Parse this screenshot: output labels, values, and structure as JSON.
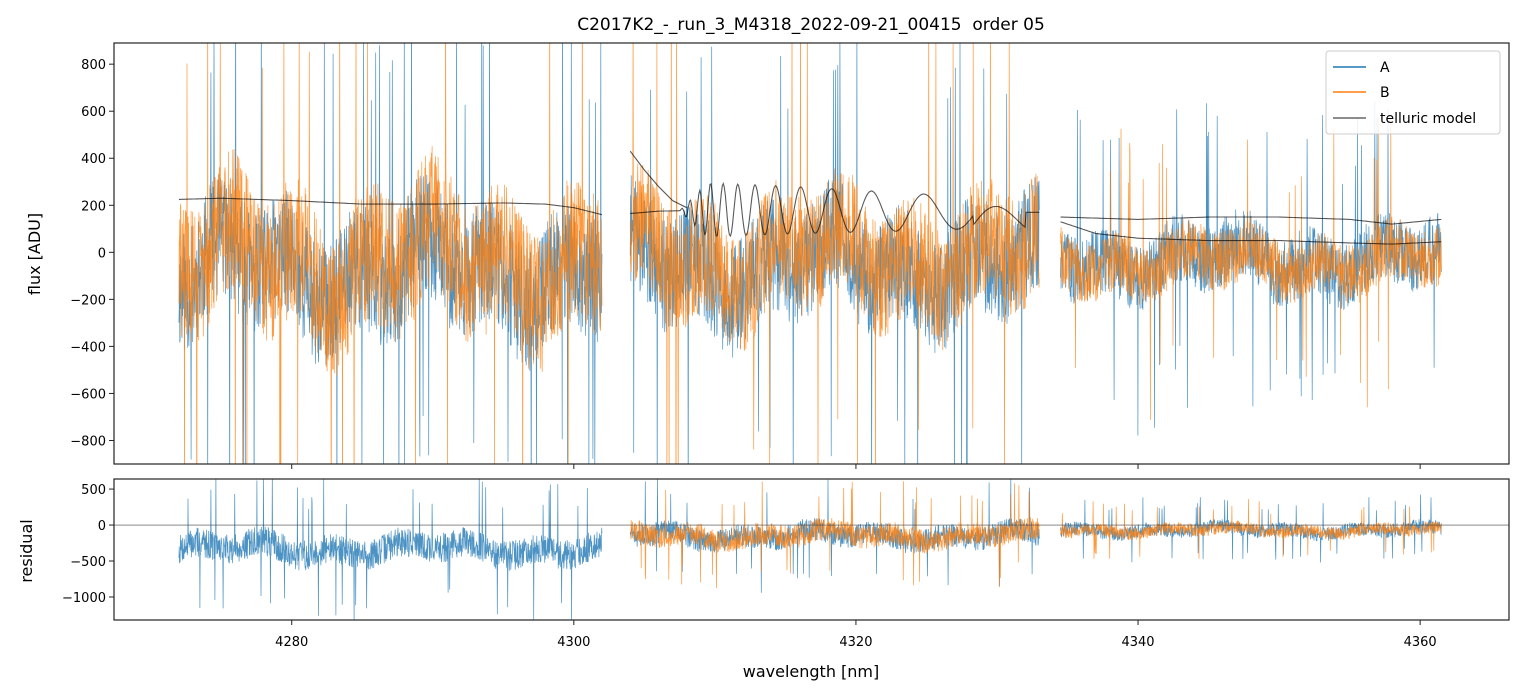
{
  "chart_data": {
    "type": "line",
    "title": "C2017K2_-_run_3_M4318_2022-09-21_00415  order 05",
    "xlabel": "wavelength [nm]",
    "xlim": [
      4267.4,
      4366.3
    ],
    "xticks": [
      4280,
      4300,
      4320,
      4340,
      4360
    ],
    "top": {
      "ylabel": "flux [ADU]",
      "ylim": [
        -900,
        890
      ],
      "yticks": [
        800,
        600,
        400,
        200,
        0,
        -200,
        -400,
        -600,
        -800
      ],
      "legend": {
        "placement": "top-right",
        "entries": [
          "A",
          "B",
          "telluric model"
        ]
      },
      "series": [
        {
          "name": "A",
          "color": "#1f77b4",
          "segments": [
            [
              4272,
              4302
            ],
            [
              4304,
              4333
            ],
            [
              4334.5,
              4361.5
            ]
          ],
          "mean": [
            -80,
            -60,
            -30
          ],
          "spread": [
            330,
            300,
            180
          ],
          "seed": 11
        },
        {
          "name": "B",
          "color": "#ff7f0e",
          "segments": [
            [
              4272,
              4302
            ],
            [
              4304,
              4333
            ],
            [
              4334.5,
              4361.5
            ]
          ],
          "mean": [
            -40,
            -20,
            -40
          ],
          "spread": [
            380,
            320,
            160
          ],
          "seed": 29
        }
      ],
      "telluric_model": [
        {
          "x": [
            4272,
            4275,
            4280,
            4285,
            4290,
            4295,
            4298,
            4300,
            4302
          ],
          "y": [
            225,
            230,
            220,
            205,
            205,
            210,
            205,
            190,
            160
          ]
        },
        {
          "x": [
            4304,
            4305,
            4306,
            4307,
            4308
          ],
          "y": [
            430,
            350,
            280,
            220,
            190
          ]
        },
        {
          "x": [
            4304,
            4306,
            4310,
            4315,
            4320,
            4325,
            4330,
            4331,
            4333
          ],
          "y": [
            165,
            175,
            180,
            180,
            175,
            170,
            170,
            170,
            170
          ],
          "oscillation": {
            "from": 4307.5,
            "to": 4332,
            "amplitude": 120
          }
        },
        {
          "x": [
            4334.5,
            4340,
            4345,
            4350,
            4355,
            4358,
            4361.5
          ],
          "y": [
            150,
            140,
            150,
            150,
            140,
            120,
            140
          ]
        },
        {
          "x": [
            4334.5,
            4337,
            4340,
            4345,
            4350,
            4355,
            4358,
            4361.5
          ],
          "y": [
            130,
            80,
            60,
            50,
            50,
            40,
            35,
            45
          ]
        }
      ]
    },
    "bottom": {
      "ylabel": "residual",
      "ylim": [
        -1320,
        640
      ],
      "yticks": [
        500,
        0,
        -500,
        -1000
      ],
      "series": [
        {
          "name": "A",
          "color": "#1f77b4",
          "segments": [
            [
              4272,
              4302
            ],
            [
              4304,
              4333
            ],
            [
              4334.5,
              4361.5
            ]
          ],
          "mean": [
            -330,
            -150,
            -70
          ],
          "spread": [
            260,
            200,
            120
          ],
          "seed": 7
        },
        {
          "name": "B",
          "color": "#ff7f0e",
          "segments": [
            [
              4304,
              4333
            ],
            [
              4334.5,
              4361.5
            ]
          ],
          "mean": [
            -140,
            -70
          ],
          "spread": [
            200,
            110
          ],
          "seed": 43
        }
      ]
    }
  }
}
